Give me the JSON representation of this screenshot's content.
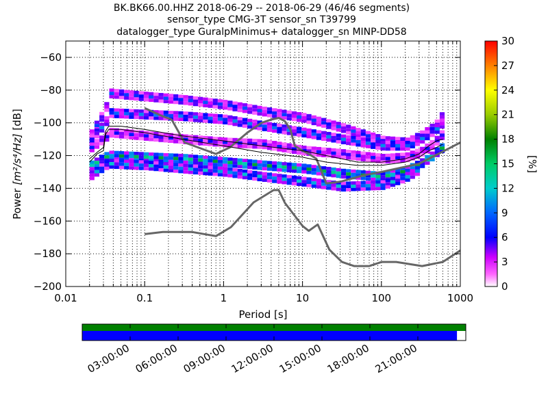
{
  "header": {
    "line1": "BK.BK66.00.HHZ   2018-06-29 -- 2018-06-29  (46/46 segments)",
    "line2": "sensor_type CMG-3T sensor_sn T39799",
    "line3": "datalogger_type GuralpMinimus+ datalogger_sn MINP-DD58"
  },
  "chart_data": {
    "type": "heatmap",
    "xlabel": "Period [s]",
    "ylabel_prefix": "Power ",
    "ylabel_units": "[m²/s⁴/Hz]",
    "ylabel_suffix": " [dB]",
    "x_scale": "log",
    "xlim": [
      0.01,
      1000
    ],
    "ylim": [
      -200,
      -50
    ],
    "x_ticks": [
      {
        "value": 0.01,
        "label": "0.01"
      },
      {
        "value": 0.1,
        "label": "0.1"
      },
      {
        "value": 1,
        "label": "1"
      },
      {
        "value": 10,
        "label": "10"
      },
      {
        "value": 100,
        "label": "100"
      },
      {
        "value": 1000,
        "label": "1000"
      }
    ],
    "y_ticks": [
      {
        "value": -60,
        "label": "−60"
      },
      {
        "value": -80,
        "label": "−80"
      },
      {
        "value": -100,
        "label": "−100"
      },
      {
        "value": -120,
        "label": "−120"
      },
      {
        "value": -140,
        "label": "−140"
      },
      {
        "value": -160,
        "label": "−160"
      },
      {
        "value": -180,
        "label": "−180"
      },
      {
        "value": -200,
        "label": "−200"
      }
    ],
    "grid": "dotted",
    "colorbar": {
      "label": "[%]",
      "min": 0,
      "max": 30,
      "ticks": [
        {
          "value": 0,
          "label": "0"
        },
        {
          "value": 3,
          "label": "3"
        },
        {
          "value": 6,
          "label": "6"
        },
        {
          "value": 9,
          "label": "9"
        },
        {
          "value": 12,
          "label": "12"
        },
        {
          "value": 15,
          "label": "15"
        },
        {
          "value": 18,
          "label": "18"
        },
        {
          "value": 21,
          "label": "21"
        },
        {
          "value": 24,
          "label": "24"
        },
        {
          "value": 27,
          "label": "27"
        },
        {
          "value": 30,
          "label": "30"
        }
      ]
    },
    "noise_model_high": {
      "color": "#666666",
      "x": [
        0.1,
        0.17,
        0.22,
        0.32,
        0.8,
        1.2,
        2,
        3,
        4,
        5,
        6,
        7,
        8,
        10,
        12,
        15,
        20,
        30,
        60,
        100,
        300,
        1000
      ],
      "y": [
        -91,
        -96,
        -98,
        -112,
        -119,
        -115,
        -106,
        -100,
        -98,
        -97,
        -99,
        -104,
        -114,
        -117,
        -119,
        -122,
        -137,
        -136,
        -132,
        -130,
        -125,
        -112
      ]
    },
    "noise_model_low": {
      "color": "#666666",
      "x": [
        0.1,
        0.17,
        0.4,
        0.8,
        1.24,
        2.4,
        4.3,
        5,
        6,
        10,
        12,
        15.6,
        21.9,
        31.6,
        45,
        70,
        101,
        154,
        328,
        600,
        1000
      ],
      "y": [
        -168,
        -166.7,
        -166.7,
        -169.2,
        -163.7,
        -148.6,
        -141.1,
        -141.1,
        -149,
        -163,
        -166,
        -162.1,
        -177.5,
        -185,
        -187.5,
        -187.5,
        -185,
        -185,
        -187.5,
        -185,
        -178
      ]
    },
    "mean_curve": {
      "color": "#000000",
      "x": [
        0.02,
        0.025,
        0.03,
        0.032,
        0.035,
        0.05,
        0.1,
        0.3,
        1,
        3,
        10,
        20,
        50,
        100,
        200,
        300,
        400,
        500,
        600
      ],
      "y": [
        -124,
        -119,
        -117,
        -107,
        -104,
        -104,
        -106,
        -110,
        -114,
        -118,
        -121,
        -124,
        -126,
        -126,
        -124,
        -121,
        -117,
        -115,
        -113
      ]
    },
    "mode_curve": {
      "color": "#000000",
      "x": [
        0.02,
        0.025,
        0.03,
        0.032,
        0.035,
        0.05,
        0.1,
        0.3,
        1,
        3,
        10,
        20,
        50,
        100,
        200,
        300,
        400,
        500,
        600
      ],
      "y": [
        -122,
        -118,
        -115,
        -105,
        -102,
        -102,
        -104,
        -108,
        -111,
        -114,
        -117,
        -120,
        -124,
        -124,
        -122,
        -119,
        -114,
        -111,
        -110
      ]
    },
    "density_bands": [
      {
        "x": [
          0.02,
          0.03,
          0.035,
          0.1,
          0.3,
          1,
          3,
          10,
          30,
          100,
          200,
          300,
          400,
          500,
          600
        ],
        "y": [
          -107,
          -92,
          -82,
          -84,
          -86,
          -89,
          -93,
          -97,
          -103,
          -111,
          -112,
          -108,
          -104,
          -100,
          -93
        ],
        "width_db": 3,
        "percent": 5
      },
      {
        "x": [
          0.02,
          0.03,
          0.035,
          0.1,
          0.3,
          1,
          3,
          10,
          30,
          100,
          200,
          300,
          400,
          500,
          600
        ],
        "y": [
          -110,
          -100,
          -94,
          -95,
          -96,
          -98,
          -102,
          -106,
          -110,
          -114,
          -114,
          -110,
          -106,
          -103,
          -98
        ],
        "width_db": 3,
        "percent": 6
      },
      {
        "x": [
          0.02,
          0.03,
          0.035,
          0.1,
          0.3,
          1,
          3,
          10,
          30,
          100,
          200,
          300,
          400,
          500,
          600
        ],
        "y": [
          -115,
          -109,
          -106,
          -108,
          -110,
          -112,
          -113,
          -117,
          -119,
          -122,
          -121,
          -118,
          -114,
          -110,
          -105
        ],
        "width_db": 3,
        "percent": 4
      },
      {
        "x": [
          0.02,
          0.03,
          0.035,
          0.1,
          0.3,
          1,
          3,
          10,
          30,
          100,
          200,
          300,
          400,
          500,
          600
        ],
        "y": [
          -126,
          -121,
          -120,
          -121,
          -122,
          -124,
          -126,
          -128,
          -131,
          -133,
          -129,
          -125,
          -121,
          -117,
          -114
        ],
        "width_db": 3,
        "percent": 10
      },
      {
        "x": [
          0.02,
          0.03,
          0.035,
          0.1,
          0.3,
          1,
          3,
          10,
          30,
          100,
          200,
          300
        ],
        "y": [
          -132,
          -126,
          -125,
          -126,
          -128,
          -130,
          -133,
          -136,
          -139,
          -138,
          -133,
          -128
        ],
        "width_db": 3,
        "percent": 7
      }
    ],
    "timeline": {
      "labels": [
        "03:00:00",
        "06:00:00",
        "09:00:00",
        "12:00:00",
        "15:00:00",
        "18:00:00",
        "21:00:00"
      ],
      "hours": [
        3,
        6,
        9,
        12,
        15,
        18,
        21
      ],
      "start_hour": 0,
      "end_hour": 24,
      "coverage_color": "#0000ff",
      "data_color": "#008000",
      "coverage_fraction": 0.977
    }
  }
}
